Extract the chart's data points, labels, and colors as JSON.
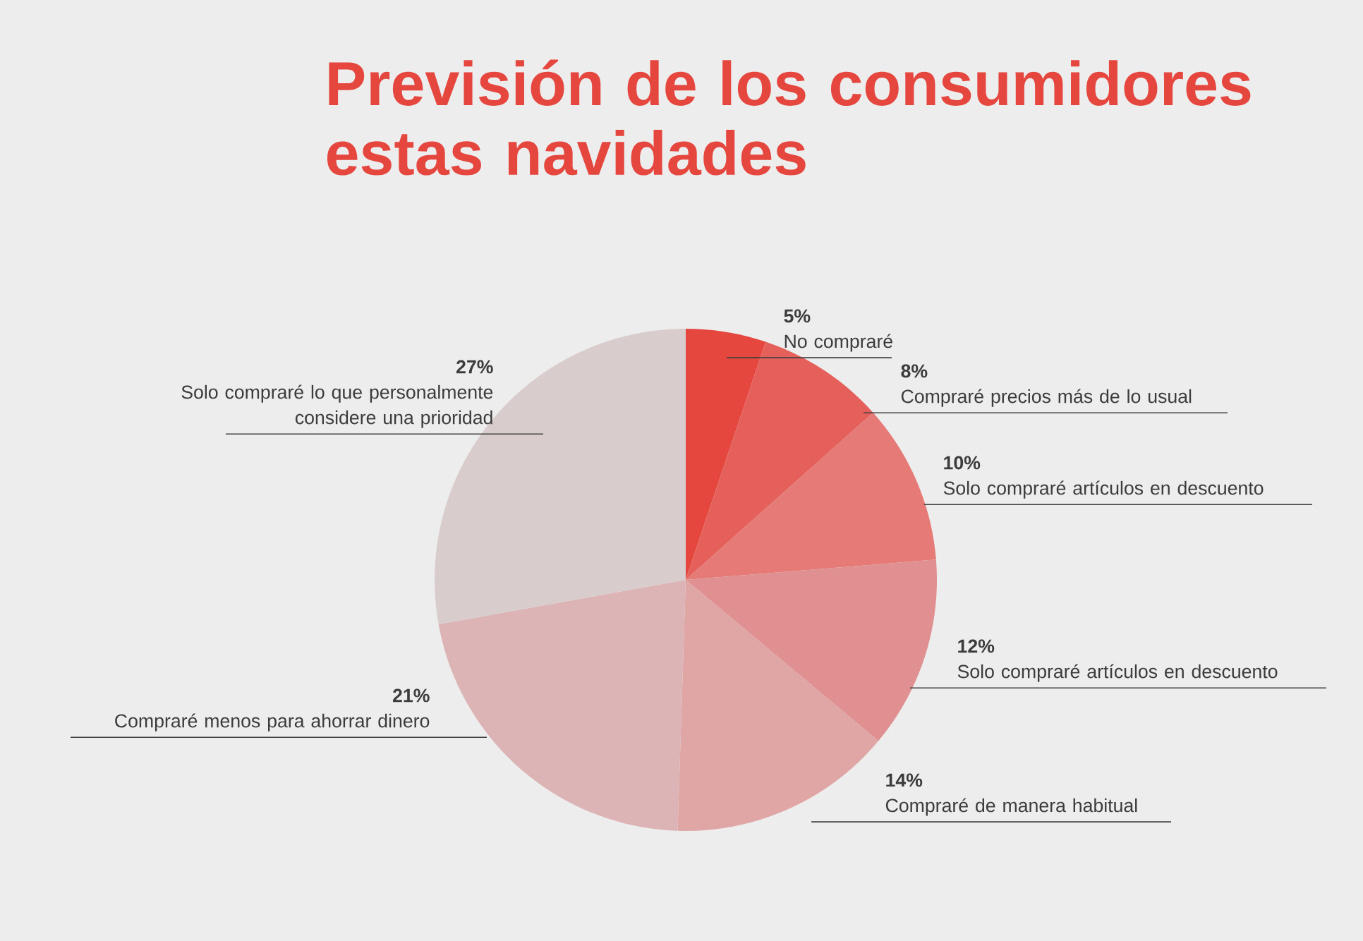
{
  "chart_data": {
    "type": "pie",
    "title": "Previsión de los consumidores estas navidades",
    "categories": [
      "No compraré",
      "Compraré precios más de lo usual",
      "Solo compraré artículos en descuento",
      "Solo compraré artículos en descuento",
      "Compraré de manera habitual",
      "Compraré menos para ahorrar dinero",
      "Solo compraré lo que personalmente considere una prioridad"
    ],
    "values": [
      5,
      8,
      10,
      12,
      14,
      21,
      27
    ],
    "value_labels": [
      "5%",
      "8%",
      "10%",
      "12%",
      "14%",
      "21%",
      "27%"
    ],
    "colors": [
      "#e5473f",
      "#e5605a",
      "#e57a76",
      "#e09090",
      "#e0a5a5",
      "#dcb4b5",
      "#d9cccc"
    ]
  }
}
